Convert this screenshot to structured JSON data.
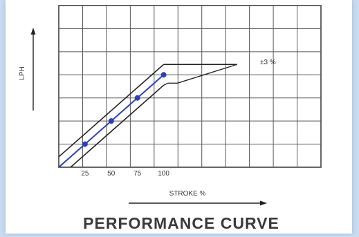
{
  "colors": {
    "background": "#c9dcf0",
    "panel": "#ffffff",
    "grid": "#555555",
    "band": "#222222",
    "series": "#2b3fb5",
    "text": "#333333"
  },
  "chart_data": {
    "type": "line",
    "title": "PERFORMANCE CURVE",
    "xlabel": "STROKE %",
    "ylabel": "LPH",
    "x_ticks": [
      "25",
      "50",
      "75",
      "100"
    ],
    "tolerance_label": "±3 %",
    "xlim": [
      0,
      250
    ],
    "ylim": [
      0,
      7
    ],
    "grid": true,
    "series": [
      {
        "values": [
          {
            "x": 25,
            "y": 1
          },
          {
            "x": 50,
            "y": 2
          },
          {
            "x": 75,
            "y": 3
          },
          {
            "x": 100,
            "y": 4
          }
        ]
      }
    ],
    "tolerance_band": {
      "upper": [
        {
          "x": 0,
          "y": 0.45
        },
        {
          "x": 100,
          "y": 4.45
        }
      ],
      "lower": [
        {
          "x": 0,
          "y": -0.45
        },
        {
          "x": 100,
          "y": 3.55
        }
      ],
      "callout_end": {
        "x": 170,
        "y": 4.45
      }
    }
  }
}
